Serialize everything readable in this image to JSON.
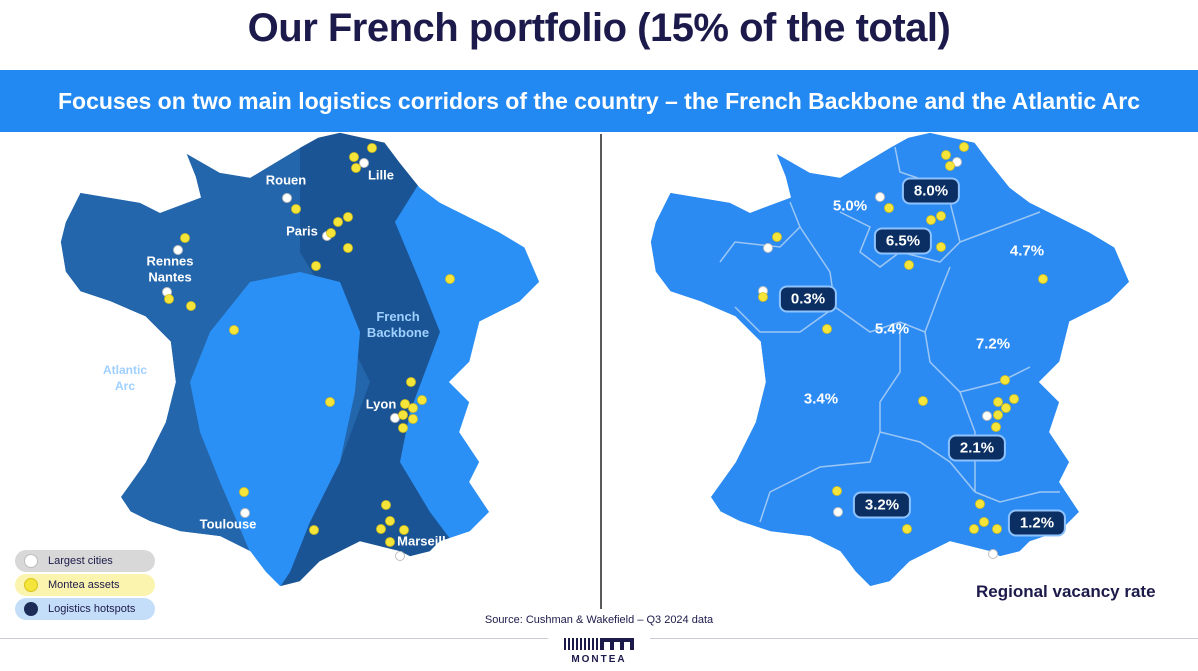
{
  "title": "Our French portfolio (15% of the total)",
  "subtitle": "Focuses on two main logistics corridors of the country – the French Backbone and the Atlantic Arc",
  "left_map": {
    "city_labels": {
      "rouen": "Rouen",
      "lille": "Lille",
      "paris": "Paris",
      "rennes": "Rennes",
      "nantes": "Nantes",
      "lyon": "Lyon",
      "toulouse": "Toulouse",
      "marseille": "Marseille"
    },
    "corridors": {
      "backbone": "French\nBackbone",
      "atlantic": "Atlantic\nArc"
    },
    "legend": {
      "largest_cities": "Largest cities",
      "montea_assets": "Montea assets",
      "logistics_hotspots": "Logistics hotspots"
    }
  },
  "right_map": {
    "vacancy_badges": {
      "north": "8.0%",
      "paris": "6.5%",
      "brittany": "0.3%",
      "lyon": "2.1%",
      "toulouse": "3.2%",
      "marseille": "1.2%"
    },
    "vacancy_plain": {
      "normandy": "5.0%",
      "grand_est": "4.7%",
      "centre": "5.4%",
      "bourgogne": "7.2%",
      "nouvelle_aquitaine": "3.4%"
    },
    "caption": "Regional vacancy rate"
  },
  "source": "Source: Cushman & Wakefield – Q3 2024 data",
  "logo_text": "MONTEA",
  "colors": {
    "title": "#1c1a4a",
    "banner": "#2389f2",
    "france_mid": "#2466ab",
    "hotspot": "#1a5494",
    "light_region": "#2b90f5",
    "asset_yellow": "#f5e43a",
    "badge": "#0b2f62"
  }
}
